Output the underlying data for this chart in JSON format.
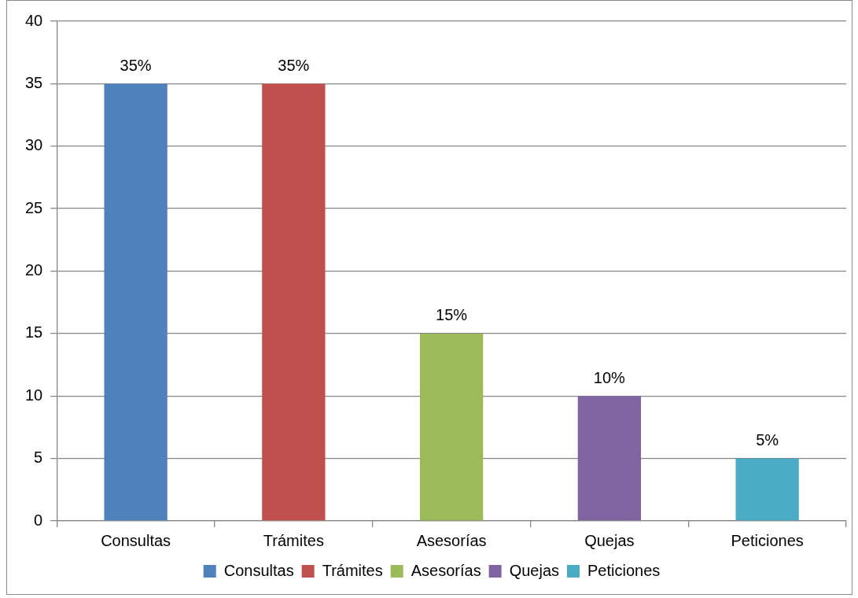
{
  "chart_data": {
    "type": "bar",
    "categories": [
      "Consultas",
      "Trámites",
      "Asesorías",
      "Quejas",
      "Peticiones"
    ],
    "series": [
      {
        "name": "Consultas",
        "color": "#4f81bd",
        "values": [
          35,
          null,
          null,
          null,
          null
        ],
        "value_labels": [
          "35%",
          null,
          null,
          null,
          null
        ]
      },
      {
        "name": "Trámites",
        "color": "#c0504d",
        "values": [
          null,
          35,
          null,
          null,
          null
        ],
        "value_labels": [
          null,
          "35%",
          null,
          null,
          null
        ]
      },
      {
        "name": "Asesorías",
        "color": "#9bbb59",
        "values": [
          null,
          null,
          15,
          null,
          null
        ],
        "value_labels": [
          null,
          null,
          "15%",
          null,
          null
        ]
      },
      {
        "name": "Quejas",
        "color": "#8064a2",
        "values": [
          null,
          null,
          null,
          10,
          null
        ],
        "value_labels": [
          null,
          null,
          null,
          "10%",
          null
        ]
      },
      {
        "name": "Peticiones",
        "color": "#4bacc6",
        "values": [
          null,
          null,
          null,
          null,
          5
        ],
        "value_labels": [
          null,
          null,
          null,
          null,
          "5%"
        ]
      }
    ],
    "ylim": [
      0,
      40
    ],
    "yticks": [
      0,
      5,
      10,
      15,
      20,
      25,
      30,
      35,
      40
    ],
    "grid": "y",
    "legend": "bottom"
  }
}
